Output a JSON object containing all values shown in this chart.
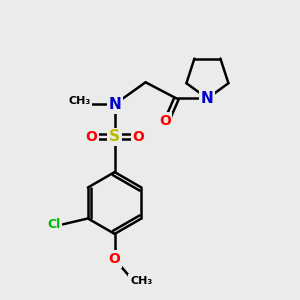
{
  "background_color": "#ebebeb",
  "atom_colors": {
    "C": "#000000",
    "N": "#0000cc",
    "O": "#ff0000",
    "S": "#bbbb00",
    "Cl": "#00bb00",
    "H": "#000000"
  },
  "bond_color": "#000000",
  "bond_width": 1.8,
  "figsize": [
    3.0,
    3.0
  ],
  "dpi": 100
}
